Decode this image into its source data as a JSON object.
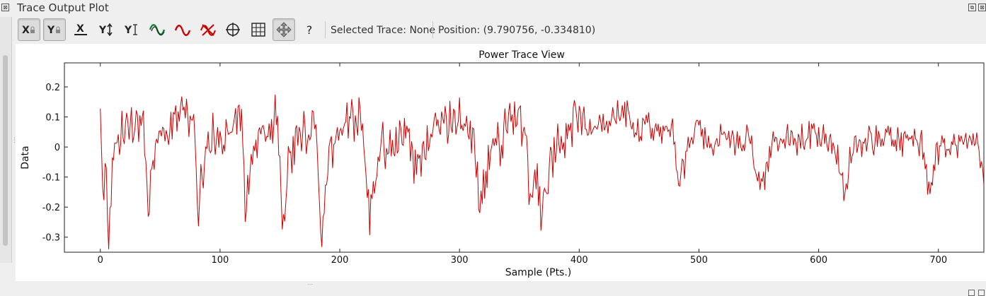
{
  "window": {
    "title": "Trace Output Plot",
    "close_glyph": "⊠",
    "float_glyph": "⧉"
  },
  "toolbar": {
    "buttons": [
      {
        "name": "x-lock-button",
        "label": "X",
        "icon": "x-axis-lock-icon",
        "pressed": true
      },
      {
        "name": "y-lock-button",
        "label": "Y",
        "icon": "y-axis-lock-icon",
        "pressed": true
      },
      {
        "name": "x-autoscale-button",
        "label": "X",
        "icon": "x-autoscale-icon",
        "pressed": false
      },
      {
        "name": "y-autoscale-button",
        "label": "Y↕",
        "icon": "y-autoscale-icon",
        "pressed": false
      },
      {
        "name": "y-default-button",
        "label": "YI",
        "icon": "y-default-icon",
        "pressed": false
      },
      {
        "name": "trace-wave-green-button",
        "icon": "green-red-wave-icon",
        "pressed": false
      },
      {
        "name": "trace-wave-red-button",
        "icon": "red-wave-icon",
        "pressed": false
      },
      {
        "name": "clear-traces-button",
        "icon": "red-x-wave-icon",
        "pressed": false
      },
      {
        "name": "crosshair-button",
        "icon": "crosshair-icon",
        "pressed": false
      },
      {
        "name": "grid-button",
        "icon": "grid-icon",
        "pressed": false
      },
      {
        "name": "pan-button",
        "icon": "move-arrows-icon",
        "pressed": true
      },
      {
        "name": "help-button",
        "label": "?",
        "icon": "help-icon",
        "pressed": false
      }
    ],
    "selected_trace": "Selected Trace: None",
    "position": "Position: (9.790756, -0.334810)"
  },
  "colors": {
    "trace": "#cc0000",
    "green_wave": "#11883a",
    "background": "#efefef",
    "plot_background": "#ffffff"
  },
  "chart_data": {
    "type": "line",
    "title": "Power Trace View",
    "xlabel": "Sample (Pts.)",
    "ylabel": "Data",
    "xlim": [
      -30,
      738
    ],
    "ylim": [
      -0.35,
      0.28
    ],
    "xticks": [
      0,
      100,
      200,
      300,
      400,
      500,
      600,
      700
    ],
    "yticks": [
      0.2,
      0.1,
      0,
      -0.1,
      -0.2,
      -0.3
    ],
    "ytick_labels": [
      "0.2",
      "0.1",
      "0",
      "-0.1",
      "-0.2",
      "-0.3"
    ],
    "grid": false,
    "legend": "none",
    "sample_start": 0,
    "sample_end": 738,
    "series": [
      {
        "color": "#cc0000",
        "keypoints": [
          [
            0,
            0.1
          ],
          [
            2,
            -0.16
          ],
          [
            5,
            -0.05
          ],
          [
            7,
            -0.32
          ],
          [
            10,
            -0.08
          ],
          [
            14,
            0.0
          ],
          [
            20,
            0.08
          ],
          [
            28,
            0.05
          ],
          [
            35,
            0.1
          ],
          [
            40,
            -0.22
          ],
          [
            44,
            -0.05
          ],
          [
            50,
            0.02
          ],
          [
            58,
            0.06
          ],
          [
            66,
            0.1
          ],
          [
            72,
            0.14
          ],
          [
            78,
            0.08
          ],
          [
            82,
            -0.21
          ],
          [
            86,
            -0.05
          ],
          [
            92,
            0.02
          ],
          [
            100,
            0.04
          ],
          [
            108,
            0.08
          ],
          [
            114,
            0.13
          ],
          [
            119,
            0.06
          ],
          [
            121,
            -0.21
          ],
          [
            126,
            -0.05
          ],
          [
            132,
            0.02
          ],
          [
            140,
            0.06
          ],
          [
            148,
            0.1
          ],
          [
            152,
            -0.27
          ],
          [
            157,
            -0.05
          ],
          [
            163,
            0.02
          ],
          [
            172,
            0.05
          ],
          [
            180,
            0.12
          ],
          [
            185,
            -0.33
          ],
          [
            190,
            -0.05
          ],
          [
            196,
            0.02
          ],
          [
            204,
            0.06
          ],
          [
            212,
            0.1
          ],
          [
            220,
            0.06
          ],
          [
            225,
            -0.24
          ],
          [
            230,
            -0.08
          ],
          [
            236,
            0.01
          ],
          [
            245,
            0.02
          ],
          [
            255,
            0.05
          ],
          [
            262,
            -0.06
          ],
          [
            268,
            -0.02
          ],
          [
            275,
            0.04
          ],
          [
            283,
            0.07
          ],
          [
            292,
            0.1
          ],
          [
            300,
            0.08
          ],
          [
            310,
            0.06
          ],
          [
            318,
            -0.2
          ],
          [
            325,
            -0.06
          ],
          [
            330,
            0.0
          ],
          [
            338,
            0.04
          ],
          [
            346,
            0.1
          ],
          [
            355,
            0.08
          ],
          [
            359,
            -0.2
          ],
          [
            365,
            -0.08
          ],
          [
            369,
            -0.25
          ],
          [
            375,
            -0.04
          ],
          [
            382,
            0.02
          ],
          [
            390,
            0.06
          ],
          [
            400,
            0.1
          ],
          [
            410,
            0.06
          ],
          [
            420,
            0.08
          ],
          [
            430,
            0.1
          ],
          [
            440,
            0.1
          ],
          [
            450,
            0.06
          ],
          [
            460,
            0.06
          ],
          [
            470,
            0.04
          ],
          [
            478,
            0.04
          ],
          [
            484,
            -0.14
          ],
          [
            490,
            0.0
          ],
          [
            500,
            0.06
          ],
          [
            510,
            0.02
          ],
          [
            520,
            0.03
          ],
          [
            530,
            0.01
          ],
          [
            540,
            0.04
          ],
          [
            545,
            -0.02
          ],
          [
            553,
            -0.15
          ],
          [
            560,
            0.0
          ],
          [
            570,
            0.02
          ],
          [
            580,
            0.03
          ],
          [
            590,
            0.03
          ],
          [
            600,
            0.02
          ],
          [
            610,
            0.02
          ],
          [
            616,
            -0.04
          ],
          [
            621,
            -0.17
          ],
          [
            628,
            0.0
          ],
          [
            638,
            0.02
          ],
          [
            648,
            0.02
          ],
          [
            658,
            0.02
          ],
          [
            668,
            0.02
          ],
          [
            678,
            0.01
          ],
          [
            686,
            0.0
          ],
          [
            692,
            -0.16
          ],
          [
            700,
            0.0
          ],
          [
            710,
            0.02
          ],
          [
            720,
            0.02
          ],
          [
            730,
            0.03
          ],
          [
            738,
            -0.08
          ]
        ]
      }
    ]
  }
}
